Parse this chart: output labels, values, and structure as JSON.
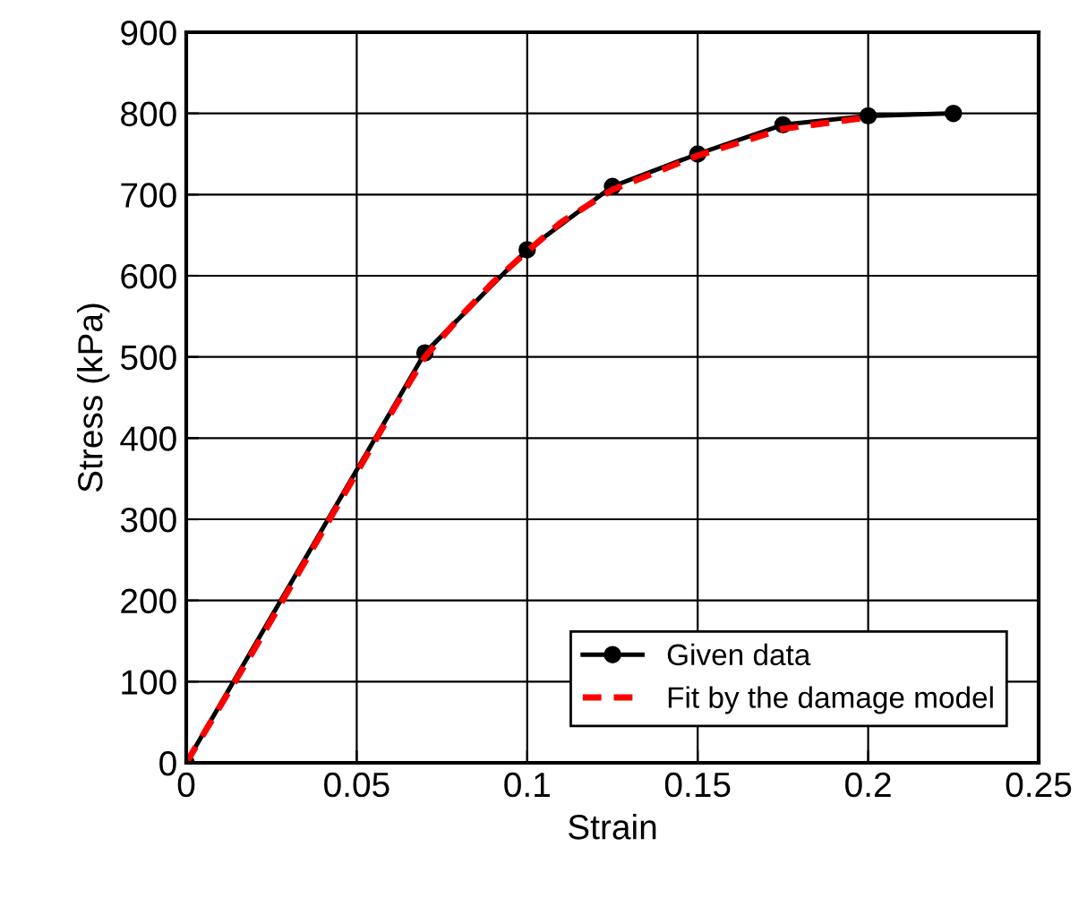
{
  "chart_data": {
    "type": "line",
    "xlabel": "Strain",
    "ylabel": "Stress (kPa)",
    "xlim": [
      0,
      0.25
    ],
    "xticks": [
      0,
      0.05,
      0.1,
      0.15,
      0.2,
      0.25
    ],
    "ylim": [
      0,
      900
    ],
    "yticks": [
      0,
      100,
      200,
      300,
      400,
      500,
      600,
      700,
      800,
      900
    ],
    "grid": true,
    "legend": "bottom right",
    "series": [
      {
        "name": "Given data",
        "color": "#000000",
        "marker": "circle",
        "line_style": "solid",
        "x": [
          0,
          0.07,
          0.1,
          0.125,
          0.15,
          0.175,
          0.2,
          0.225
        ],
        "values": [
          0,
          505,
          632,
          710,
          750,
          786,
          797,
          800
        ]
      },
      {
        "name": "Fit by the damage model",
        "color": "#ff0000",
        "marker": "none",
        "line_style": "dashed",
        "x": [
          0,
          0.02,
          0.04,
          0.06,
          0.07,
          0.08,
          0.09,
          0.1,
          0.11,
          0.125,
          0.15,
          0.175,
          0.2
        ],
        "values": [
          0,
          140,
          285,
          430,
          500,
          548,
          592,
          630,
          666,
          706,
          748,
          781,
          795
        ]
      }
    ]
  }
}
